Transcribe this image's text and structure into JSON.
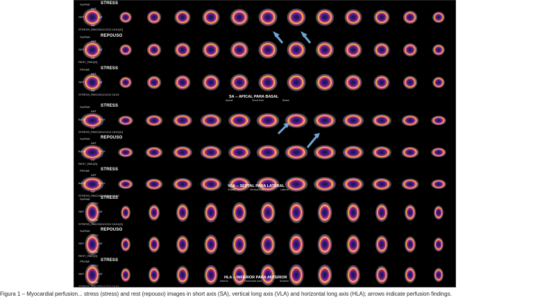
{
  "figure": {
    "section_titles": {
      "sa": "SA -- APICAL PARA BASAL",
      "vla": "VLA -- SEPTAL PARA LATERAL",
      "hla": "HLA -- INFERIOR PARA ANTERIOR"
    },
    "section_subs": {
      "sa": [
        "Apical",
        "Short Axis",
        "Basal"
      ],
      "vla": [
        "Septal",
        "Vertical Axis",
        "Lateral"
      ],
      "hla": [
        "Inferior",
        "Horizontal Axis",
        "Anterior"
      ]
    },
    "rows": [
      {
        "label": "STRESS",
        "pos": "SUPINE",
        "id": "STRESS_RMC2021/12/13 16:01[G]",
        "orient": [
          "ANT",
          "SEP",
          "LAT",
          "INF"
        ]
      },
      {
        "label": "REPOUSO",
        "pos": "SUPINE",
        "id": "REST_RMC[G]",
        "orient": [
          "ANT",
          "SEP",
          "LAT",
          "INF"
        ]
      },
      {
        "label": "STRESS",
        "pos": "PRONE",
        "id": "STRESS_RMC2021/12/13 16:43",
        "orient": [
          "ANT",
          "SEP",
          "LAT",
          "INF"
        ]
      },
      {
        "label": "STRESS",
        "pos": "SUPINE",
        "id": "STRESS_RMC2021/12/13 16:01[G]",
        "orient": [
          "ANT",
          "BASE",
          "APEX",
          "INF"
        ]
      },
      {
        "label": "REPOUSO",
        "pos": "SUPINE",
        "id": "REST_RMC[G]",
        "orient": [
          "ANT",
          "BASE",
          "APEX",
          "INF"
        ]
      },
      {
        "label": "STRESS",
        "pos": "PRONE",
        "id": "STRESS_RMC2021/12/13 16:43",
        "orient": [
          "ANT",
          "BASE",
          "APEX",
          "INF"
        ]
      },
      {
        "label": "STRESS",
        "pos": "SUPINE",
        "id": "STRESS_RMC2021/12/13 16:01[G]",
        "orient": [
          "APEX",
          "SEP",
          "LAT",
          "BASE"
        ]
      },
      {
        "label": "REPOUSO",
        "pos": "SUPINE",
        "id": "REST_RMC[G]",
        "orient": [
          "APEX",
          "SEP",
          "LAT",
          "BASE"
        ]
      },
      {
        "label": "STRESS",
        "pos": "PRONE",
        "id": "STRESS_RMC2021/12/13 16:43",
        "orient": [
          "APEX",
          "SEP",
          "LAT",
          "BASE"
        ]
      }
    ],
    "colors": {
      "background": "#000000",
      "ring_hot": "#ffd24a",
      "ring_mid": "#d9357a",
      "ring_low": "#4a2a9a",
      "halo": "#1f5d55",
      "arrow": "#6fa6d6"
    }
  },
  "caption": "Figura 1 – Myocardial perfusion... stress (stress) and rest (repouso) images in short axis (SA), vertical long axis (VLA) and horizontal long axis (HLA); arrows indicate perfusion findings."
}
